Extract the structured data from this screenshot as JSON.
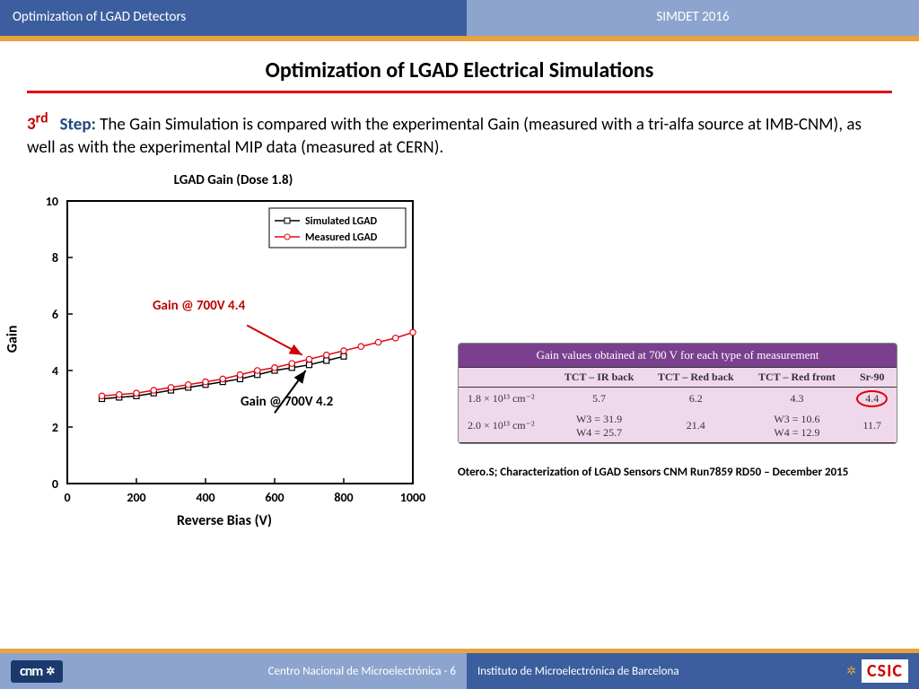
{
  "header": {
    "left": "Optimization of LGAD Detectors",
    "right": "SIMDET 2016"
  },
  "title": "Optimization of LGAD Electrical Simulations",
  "step": {
    "num": "3",
    "sup": "rd",
    "word": "Step:",
    "text": "The Gain Simulation is compared with the experimental Gain (measured with a tri-alfa source at IMB-CNM), as well as with the experimental MIP data (measured at CERN)."
  },
  "chart": {
    "title": "LGAD Gain (Dose 1.8)",
    "xlabel": "Reverse Bias (V)",
    "ylabel": "Gain",
    "xlim": [
      0,
      1000
    ],
    "ylim": [
      0,
      10
    ],
    "xticks": [
      0,
      200,
      400,
      600,
      800,
      1000
    ],
    "yticks": [
      0,
      2,
      4,
      6,
      8,
      10
    ],
    "series": [
      {
        "name": "Simulated LGAD",
        "color": "#000000",
        "marker": "square",
        "x": [
          100,
          150,
          200,
          250,
          300,
          350,
          400,
          450,
          500,
          550,
          600,
          650,
          700,
          750,
          800
        ],
        "y": [
          3.0,
          3.05,
          3.1,
          3.2,
          3.3,
          3.4,
          3.5,
          3.6,
          3.7,
          3.85,
          4.0,
          4.1,
          4.2,
          4.35,
          4.5
        ]
      },
      {
        "name": "Measured LGAD",
        "color": "#e30613",
        "marker": "circle",
        "x": [
          100,
          150,
          200,
          250,
          300,
          350,
          400,
          450,
          500,
          550,
          600,
          650,
          700,
          750,
          800,
          850,
          900,
          950,
          1000
        ],
        "y": [
          3.1,
          3.15,
          3.2,
          3.3,
          3.4,
          3.5,
          3.6,
          3.7,
          3.85,
          4.0,
          4.1,
          4.25,
          4.4,
          4.55,
          4.7,
          4.85,
          5.0,
          5.15,
          5.35
        ]
      }
    ],
    "annot_red": "Gain @ 700V 4.4",
    "annot_black": "Gain @ 700V 4.2",
    "legend": [
      "Simulated LGAD",
      "Measured LGAD"
    ],
    "axis_width": 2,
    "line_width": 1.5,
    "marker_size": 4,
    "bg": "#ffffff",
    "font_size": 14
  },
  "table": {
    "title": "Gain values obtained at 700 V for each type of measurement",
    "columns": [
      "",
      "TCT – IR back",
      "TCT – Red back",
      "TCT – Red front",
      "Sr-90"
    ],
    "rows": [
      {
        "label": "1.8 × 10¹³ cm⁻²",
        "cells": [
          "5.7",
          "6.2",
          "4.3",
          "4.4"
        ],
        "circle_last": true
      },
      {
        "label": "2.0 × 10¹³ cm⁻²",
        "cells": [
          "W3 = 31.9\nW4 = 25.7",
          "21.4",
          "W3 = 10.6\nW4 = 12.9",
          "11.7"
        ]
      }
    ],
    "bg": "#f0d8ec",
    "header_bg": "#7b3f8f",
    "header_color": "#ffffff",
    "border": "#333333",
    "circle_color": "#d00000"
  },
  "citation": "Otero.S; Characterization of LGAD Sensors CNM Run7859  RD50 – December 2015",
  "footer": {
    "left_logo": "cnm",
    "left_text": "Centro Nacional de Microelectrónica",
    "page": "6",
    "right_text": "Instituto de Microelectrónica de Barcelona",
    "right_logo": "CSIC"
  }
}
